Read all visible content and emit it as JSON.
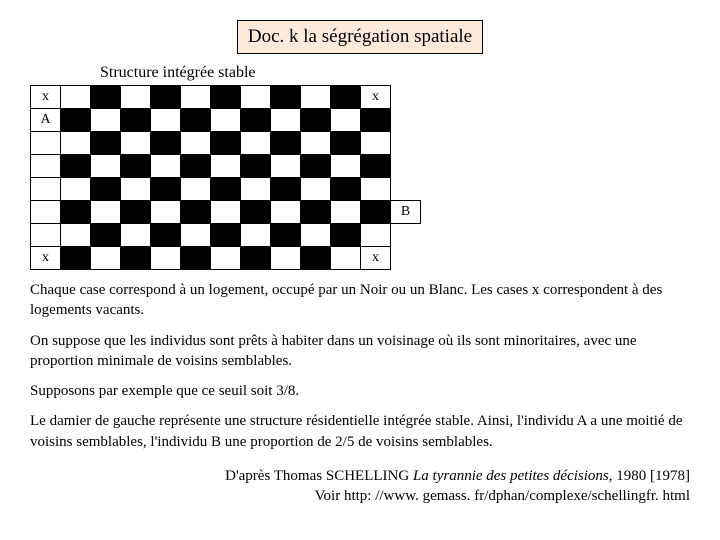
{
  "title": "Doc. k la ségrégation spatiale",
  "subtitle": "Structure intégrée stable",
  "board": {
    "rows": 8,
    "cols": 10,
    "cell_border_color": "#000000",
    "black_color": "#000000",
    "white_color": "#ffffff",
    "pattern_start": "white",
    "corner_marks": {
      "text": "x",
      "positions": [
        "top-left",
        "top-right",
        "bottom-left",
        "bottom-right"
      ]
    },
    "left_label_row2": "A",
    "right_label_row6": "B"
  },
  "paragraphs": {
    "p1": "Chaque case correspond à un logement, occupé par un Noir ou un Blanc. Les cases x correspondent à des logements vacants.",
    "p2": "On suppose que les individus sont prêts à habiter dans un voisinage où ils sont minoritaires, avec une proportion minimale de voisins semblables.",
    "p3": "Supposons par exemple que ce seuil soit 3/8.",
    "p4": "Le damier de gauche représente une structure résidentielle intégrée stable. Ainsi, l'individu A a une moitié de voisins semblables, l'individu B une proportion de 2/5 de voisins semblables."
  },
  "credit": {
    "line1_pre": "D'après Thomas SCHELLING ",
    "line1_title": "La tyrannie des petites décisions",
    "line1_post": ", 1980 [1978]",
    "line2": "Voir http: //www. gemass. fr/dphan/complexe/schellingfr. html"
  },
  "labels": {
    "x": "x",
    "A": "A",
    "B": "B"
  }
}
